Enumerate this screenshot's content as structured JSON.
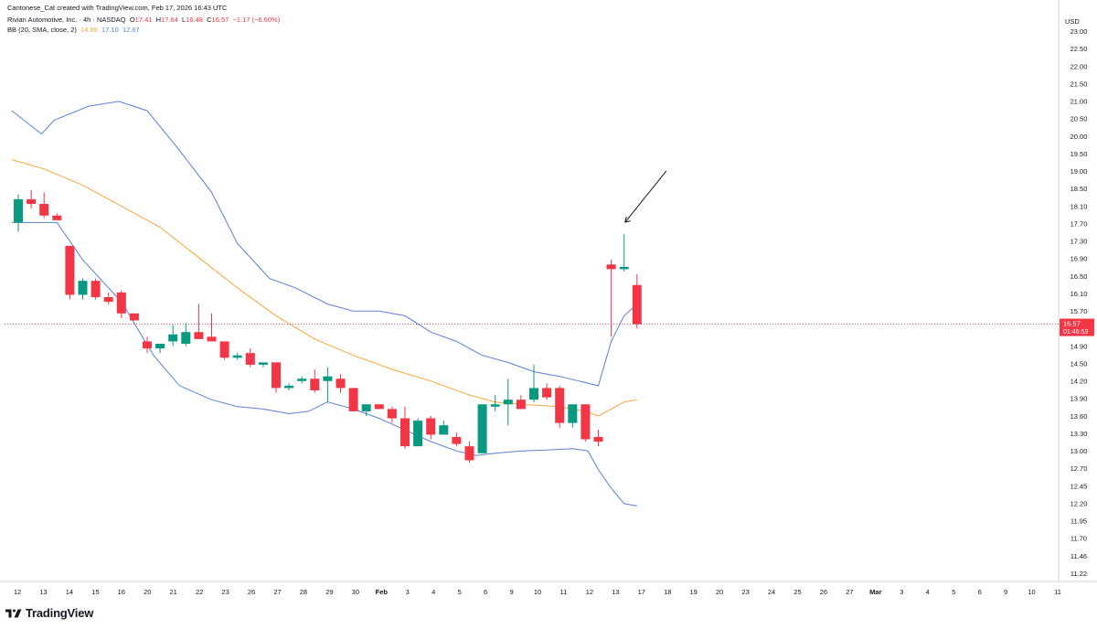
{
  "credit": "Cantonese_Cat created with TradingView.com, Feb 17, 2026 16:43 UTC",
  "legend": {
    "symbol": "Rivian Automotive, Inc. · 4h · NASDAQ",
    "o_label": "O",
    "o": "17.41",
    "h_label": "H",
    "h": "17.64",
    "l_label": "L",
    "l": "16.48",
    "c_label": "C",
    "c": "16.57",
    "change": "−1.17 (−6.60%)",
    "bb_label": "BB (20, SMA, close, 2)",
    "bb_basis": "14.89",
    "bb_upper": "17.10",
    "bb_lower": "12.67"
  },
  "currency": "USD",
  "price_tag": {
    "value": "16.57",
    "countdown": "01:46:53",
    "color": "#f23645"
  },
  "brand": "TradingView",
  "colors": {
    "up": "#089981",
    "down": "#f23645",
    "basis": "#f7a73b",
    "bands": "#5b7fd6",
    "arrow": "#131722"
  },
  "chart_data": {
    "type": "candlestick",
    "title": "Rivian Automotive, Inc. · 4h · NASDAQ",
    "ylim": [
      11.05,
      23.25
    ],
    "y_ticks": [
      "23.00",
      "22.50",
      "22.00",
      "21.50",
      "21.00",
      "20.50",
      "20.00",
      "19.50",
      "19.00",
      "18.50",
      "18.10",
      "17.70",
      "17.30",
      "16.90",
      "16.50",
      "16.10",
      "15.70",
      "15.30",
      "14.90",
      "14.50",
      "14.20",
      "13.90",
      "13.60",
      "13.30",
      "13.00",
      "12.70",
      "12.45",
      "12.20",
      "11.95",
      "11.70",
      "11.46",
      "11.22"
    ],
    "x_ticks": [
      "12",
      "13",
      "14",
      "15",
      "16",
      "20",
      "21",
      "22",
      "23",
      "26",
      "27",
      "28",
      "29",
      "30",
      "Feb",
      "3",
      "4",
      "5",
      "6",
      "9",
      "10",
      "11",
      "12",
      "13",
      "17",
      "18",
      "19",
      "20",
      "23",
      "24",
      "25",
      "26",
      "27",
      "Mar",
      "3",
      "4",
      "5",
      "6",
      "9",
      "10",
      "11"
    ],
    "candles": [
      {
        "o": 18.75,
        "h": 19.35,
        "l": 18.55,
        "c": 19.25
      },
      {
        "o": 19.25,
        "h": 19.45,
        "l": 19.05,
        "c": 19.15
      },
      {
        "o": 19.15,
        "h": 19.4,
        "l": 18.85,
        "c": 18.9
      },
      {
        "o": 18.9,
        "h": 18.95,
        "l": 18.8,
        "c": 18.8
      },
      {
        "o": 18.25,
        "h": 18.25,
        "l": 17.1,
        "c": 17.2
      },
      {
        "o": 17.2,
        "h": 17.55,
        "l": 17.1,
        "c": 17.5
      },
      {
        "o": 17.5,
        "h": 17.55,
        "l": 17.1,
        "c": 17.15
      },
      {
        "o": 17.15,
        "h": 17.25,
        "l": 17.0,
        "c": 17.05
      },
      {
        "o": 17.25,
        "h": 17.3,
        "l": 16.7,
        "c": 16.8
      },
      {
        "o": 16.8,
        "h": 16.8,
        "l": 16.65,
        "c": 16.65
      },
      {
        "o": 16.2,
        "h": 16.3,
        "l": 15.95,
        "c": 16.05
      },
      {
        "o": 16.05,
        "h": 16.15,
        "l": 15.95,
        "c": 16.15
      },
      {
        "o": 16.2,
        "h": 16.55,
        "l": 16.1,
        "c": 16.35
      },
      {
        "o": 16.15,
        "h": 16.6,
        "l": 16.1,
        "c": 16.4
      },
      {
        "o": 16.4,
        "h": 17.0,
        "l": 16.3,
        "c": 16.25
      },
      {
        "o": 16.3,
        "h": 16.8,
        "l": 16.2,
        "c": 16.2
      },
      {
        "o": 16.2,
        "h": 16.2,
        "l": 15.8,
        "c": 15.85
      },
      {
        "o": 15.85,
        "h": 15.95,
        "l": 15.8,
        "c": 15.9
      },
      {
        "o": 15.95,
        "h": 16.05,
        "l": 15.65,
        "c": 15.7
      },
      {
        "o": 15.7,
        "h": 15.75,
        "l": 15.65,
        "c": 15.75
      },
      {
        "o": 15.75,
        "h": 15.75,
        "l": 15.1,
        "c": 15.2
      },
      {
        "o": 15.2,
        "h": 15.3,
        "l": 15.15,
        "c": 15.25
      },
      {
        "o": 15.35,
        "h": 15.45,
        "l": 15.3,
        "c": 15.4
      },
      {
        "o": 15.4,
        "h": 15.6,
        "l": 15.1,
        "c": 15.15
      },
      {
        "o": 15.35,
        "h": 15.65,
        "l": 14.9,
        "c": 15.45
      },
      {
        "o": 15.4,
        "h": 15.5,
        "l": 15.1,
        "c": 15.2
      },
      {
        "o": 15.2,
        "h": 15.2,
        "l": 14.7,
        "c": 14.7
      },
      {
        "o": 14.7,
        "h": 14.85,
        "l": 14.6,
        "c": 14.85
      },
      {
        "o": 14.85,
        "h": 14.85,
        "l": 14.75,
        "c": 14.75
      },
      {
        "o": 14.75,
        "h": 14.8,
        "l": 14.45,
        "c": 14.55
      },
      {
        "o": 14.55,
        "h": 14.8,
        "l": 13.9,
        "c": 13.95
      },
      {
        "o": 13.95,
        "h": 14.55,
        "l": 13.95,
        "c": 14.5
      },
      {
        "o": 14.55,
        "h": 14.6,
        "l": 14.1,
        "c": 14.2
      },
      {
        "o": 14.2,
        "h": 14.5,
        "l": 14.2,
        "c": 14.4
      },
      {
        "o": 14.15,
        "h": 14.25,
        "l": 13.95,
        "c": 14.0
      },
      {
        "o": 13.95,
        "h": 14.05,
        "l": 13.6,
        "c": 13.65
      },
      {
        "o": 13.8,
        "h": 14.85,
        "l": 13.8,
        "c": 14.85
      },
      {
        "o": 14.8,
        "h": 15.05,
        "l": 14.7,
        "c": 14.85
      },
      {
        "o": 14.85,
        "h": 15.4,
        "l": 14.4,
        "c": 14.95
      },
      {
        "o": 14.95,
        "h": 15.05,
        "l": 14.8,
        "c": 14.75
      },
      {
        "o": 14.95,
        "h": 15.7,
        "l": 14.9,
        "c": 15.2
      },
      {
        "o": 15.2,
        "h": 15.3,
        "l": 14.95,
        "c": 15.0
      },
      {
        "o": 15.2,
        "h": 15.25,
        "l": 14.35,
        "c": 14.45
      },
      {
        "o": 14.45,
        "h": 14.85,
        "l": 14.35,
        "c": 14.85
      },
      {
        "o": 14.85,
        "h": 14.85,
        "l": 14.05,
        "c": 14.1
      },
      {
        "o": 14.15,
        "h": 14.3,
        "l": 13.95,
        "c": 14.05
      },
      {
        "o": 17.85,
        "h": 17.95,
        "l": 16.3,
        "c": 17.75
      },
      {
        "o": 17.75,
        "h": 18.5,
        "l": 17.7,
        "c": 17.8
      },
      {
        "o": 17.41,
        "h": 17.64,
        "l": 16.48,
        "c": 16.57
      }
    ],
    "bb_upper": [
      {
        "i": -0.5,
        "v": 21.15
      },
      {
        "i": 1.8,
        "v": 20.65
      },
      {
        "i": 2.8,
        "v": 20.95
      },
      {
        "i": 5.5,
        "v": 21.25
      },
      {
        "i": 7.8,
        "v": 21.35
      },
      {
        "i": 10,
        "v": 21.15
      },
      {
        "i": 12.5,
        "v": 20.3
      },
      {
        "i": 15,
        "v": 19.4
      },
      {
        "i": 17,
        "v": 18.3
      },
      {
        "i": 19.5,
        "v": 17.55
      },
      {
        "i": 21.5,
        "v": 17.35
      },
      {
        "i": 24,
        "v": 17.0
      },
      {
        "i": 26,
        "v": 16.85
      },
      {
        "i": 28,
        "v": 16.85
      },
      {
        "i": 30,
        "v": 16.75
      },
      {
        "i": 32,
        "v": 16.4
      },
      {
        "i": 34,
        "v": 16.2
      },
      {
        "i": 36,
        "v": 15.9
      },
      {
        "i": 38,
        "v": 15.75
      },
      {
        "i": 40,
        "v": 15.55
      },
      {
        "i": 42,
        "v": 15.45
      },
      {
        "i": 43.5,
        "v": 15.35
      },
      {
        "i": 45,
        "v": 15.25
      },
      {
        "i": 46,
        "v": 16.2
      },
      {
        "i": 47,
        "v": 16.75
      },
      {
        "i": 48,
        "v": 17.0
      }
    ],
    "bb_basis": [
      {
        "i": -0.5,
        "v": 20.1
      },
      {
        "i": 2,
        "v": 19.9
      },
      {
        "i": 5,
        "v": 19.55
      },
      {
        "i": 8,
        "v": 19.1
      },
      {
        "i": 11,
        "v": 18.65
      },
      {
        "i": 14,
        "v": 18.0
      },
      {
        "i": 17,
        "v": 17.35
      },
      {
        "i": 20,
        "v": 16.75
      },
      {
        "i": 23,
        "v": 16.25
      },
      {
        "i": 26,
        "v": 15.9
      },
      {
        "i": 29,
        "v": 15.6
      },
      {
        "i": 32,
        "v": 15.35
      },
      {
        "i": 35,
        "v": 15.05
      },
      {
        "i": 37,
        "v": 14.9
      },
      {
        "i": 39,
        "v": 14.85
      },
      {
        "i": 42,
        "v": 14.8
      },
      {
        "i": 44,
        "v": 14.7
      },
      {
        "i": 45,
        "v": 14.6
      },
      {
        "i": 46,
        "v": 14.75
      },
      {
        "i": 47,
        "v": 14.9
      },
      {
        "i": 48,
        "v": 14.95
      }
    ],
    "bb_lower": [
      {
        "i": -0.5,
        "v": 18.75
      },
      {
        "i": 3,
        "v": 18.75
      },
      {
        "i": 5,
        "v": 17.95
      },
      {
        "i": 8,
        "v": 17.05
      },
      {
        "i": 10.5,
        "v": 15.9
      },
      {
        "i": 12.5,
        "v": 15.25
      },
      {
        "i": 15,
        "v": 14.95
      },
      {
        "i": 17,
        "v": 14.8
      },
      {
        "i": 19,
        "v": 14.75
      },
      {
        "i": 21,
        "v": 14.65
      },
      {
        "i": 22.5,
        "v": 14.7
      },
      {
        "i": 24,
        "v": 14.9
      },
      {
        "i": 26,
        "v": 14.75
      },
      {
        "i": 28,
        "v": 14.55
      },
      {
        "i": 30,
        "v": 14.3
      },
      {
        "i": 32,
        "v": 14.05
      },
      {
        "i": 34,
        "v": 13.85
      },
      {
        "i": 35.5,
        "v": 13.75
      },
      {
        "i": 37,
        "v": 13.8
      },
      {
        "i": 39,
        "v": 13.85
      },
      {
        "i": 41,
        "v": 13.87
      },
      {
        "i": 43,
        "v": 13.9
      },
      {
        "i": 44.2,
        "v": 13.85
      },
      {
        "i": 45,
        "v": 13.45
      },
      {
        "i": 46,
        "v": 13.05
      },
      {
        "i": 47,
        "v": 12.72
      },
      {
        "i": 48,
        "v": 12.67
      }
    ],
    "last_price": 16.57,
    "grid": false
  }
}
